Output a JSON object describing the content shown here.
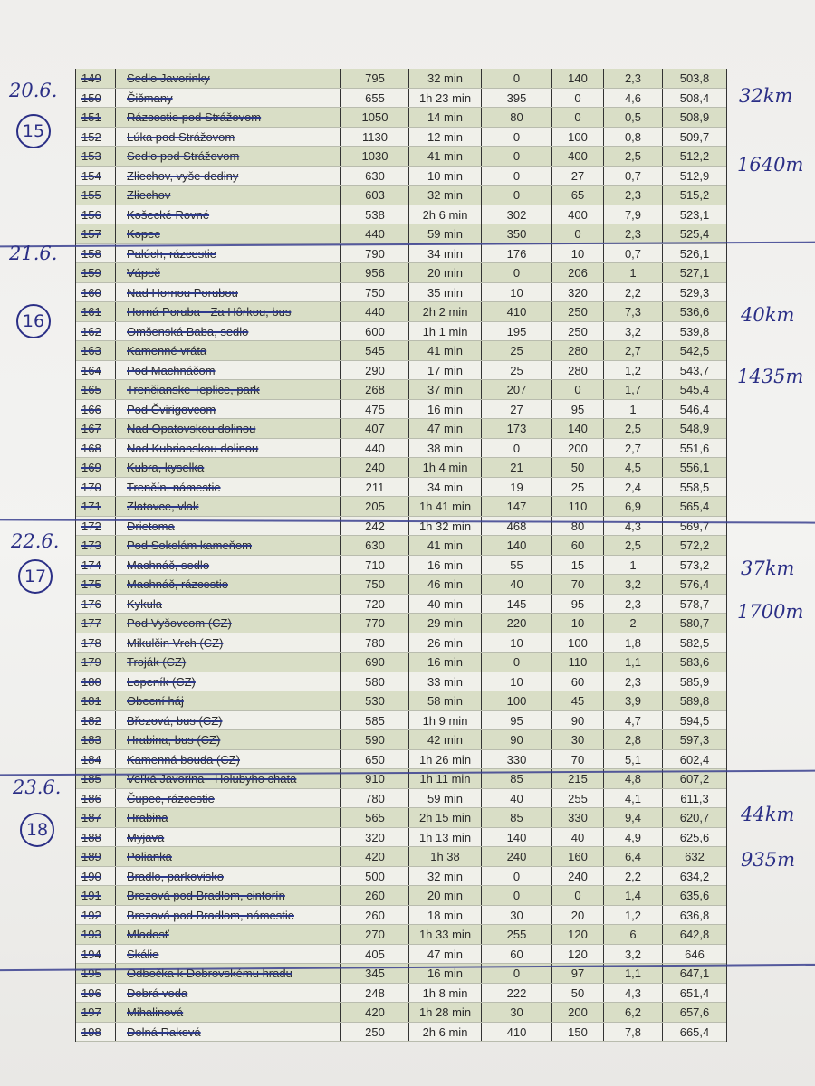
{
  "rows": [
    [
      "149",
      "Sedlo Javorinky",
      "795",
      "32 min",
      "0",
      "140",
      "2,3",
      "503,8"
    ],
    [
      "150",
      "Čičmany",
      "655",
      "1h 23 min",
      "395",
      "0",
      "4,6",
      "508,4"
    ],
    [
      "151",
      "Rázcestie pod Strážovom",
      "1050",
      "14 min",
      "80",
      "0",
      "0,5",
      "508,9"
    ],
    [
      "152",
      "Lúka pod Strážovom",
      "1130",
      "12 min",
      "0",
      "100",
      "0,8",
      "509,7"
    ],
    [
      "153",
      "Sedlo pod Strážovom",
      "1030",
      "41 min",
      "0",
      "400",
      "2,5",
      "512,2"
    ],
    [
      "154",
      "Zliechov, vyše dediny",
      "630",
      "10 min",
      "0",
      "27",
      "0,7",
      "512,9"
    ],
    [
      "155",
      "Zliechov",
      "603",
      "32 min",
      "0",
      "65",
      "2,3",
      "515,2"
    ],
    [
      "156",
      "Košecké Rovné",
      "538",
      "2h 6 min",
      "302",
      "400",
      "7,9",
      "523,1"
    ],
    [
      "157",
      "Kopec",
      "440",
      "59 min",
      "350",
      "0",
      "2,3",
      "525,4"
    ],
    [
      "158",
      "Palúch, rázcestie",
      "790",
      "34 min",
      "176",
      "10",
      "0,7",
      "526,1"
    ],
    [
      "159",
      "Vápeč",
      "956",
      "20 min",
      "0",
      "206",
      "1",
      "527,1"
    ],
    [
      "160",
      "Nad Hornou Porubou",
      "750",
      "35 min",
      "10",
      "320",
      "2,2",
      "529,3"
    ],
    [
      "161",
      "Horná Poruba - Za Hôrkou, bus",
      "440",
      "2h 2 min",
      "410",
      "250",
      "7,3",
      "536,6"
    ],
    [
      "162",
      "Omšenská Baba, sedlo",
      "600",
      "1h 1 min",
      "195",
      "250",
      "3,2",
      "539,8"
    ],
    [
      "163",
      "Kamenné vráta",
      "545",
      "41 min",
      "25",
      "280",
      "2,7",
      "542,5"
    ],
    [
      "164",
      "Pod Machnáčom",
      "290",
      "17 min",
      "25",
      "280",
      "1,2",
      "543,7"
    ],
    [
      "165",
      "Trenčianske Teplice, park",
      "268",
      "37 min",
      "207",
      "0",
      "1,7",
      "545,4"
    ],
    [
      "166",
      "Pod Čvirigovcom",
      "475",
      "16 min",
      "27",
      "95",
      "1",
      "546,4"
    ],
    [
      "167",
      "Nad Opatovskou dolinou",
      "407",
      "47 min",
      "173",
      "140",
      "2,5",
      "548,9"
    ],
    [
      "168",
      "Nad Kubrianskou dolinou",
      "440",
      "38 min",
      "0",
      "200",
      "2,7",
      "551,6"
    ],
    [
      "169",
      "Kubra, kyselka",
      "240",
      "1h 4 min",
      "21",
      "50",
      "4,5",
      "556,1"
    ],
    [
      "170",
      "Trenčín, námestie",
      "211",
      "34 min",
      "19",
      "25",
      "2,4",
      "558,5"
    ],
    [
      "171",
      "Zlatovce, vlak",
      "205",
      "1h 41 min",
      "147",
      "110",
      "6,9",
      "565,4"
    ],
    [
      "172",
      "Drietoma",
      "242",
      "1h 32 min",
      "468",
      "80",
      "4,3",
      "569,7"
    ],
    [
      "173",
      "Pod Sokolám kameňom",
      "630",
      "41 min",
      "140",
      "60",
      "2,5",
      "572,2"
    ],
    [
      "174",
      "Machnáč, sedlo",
      "710",
      "16 min",
      "55",
      "15",
      "1",
      "573,2"
    ],
    [
      "175",
      "Machnáč, rázcestie",
      "750",
      "46 min",
      "40",
      "70",
      "3,2",
      "576,4"
    ],
    [
      "176",
      "Kykula",
      "720",
      "40 min",
      "145",
      "95",
      "2,3",
      "578,7"
    ],
    [
      "177",
      "Pod Vyšovcom (CZ)",
      "770",
      "29 min",
      "220",
      "10",
      "2",
      "580,7"
    ],
    [
      "178",
      "Mikulčin Vrch (CZ)",
      "780",
      "26 min",
      "10",
      "100",
      "1,8",
      "582,5"
    ],
    [
      "179",
      "Troják (CZ)",
      "690",
      "16 min",
      "0",
      "110",
      "1,1",
      "583,6"
    ],
    [
      "180",
      "Lopeník (CZ)",
      "580",
      "33 min",
      "10",
      "60",
      "2,3",
      "585,9"
    ],
    [
      "181",
      "Obecní háj",
      "530",
      "58 min",
      "100",
      "45",
      "3,9",
      "589,8"
    ],
    [
      "182",
      "Březová, bus (CZ)",
      "585",
      "1h 9 min",
      "95",
      "90",
      "4,7",
      "594,5"
    ],
    [
      "183",
      "Hrabina, bus (CZ)",
      "590",
      "42 min",
      "90",
      "30",
      "2,8",
      "597,3"
    ],
    [
      "184",
      "Kamenná bouda (CZ)",
      "650",
      "1h 26 min",
      "330",
      "70",
      "5,1",
      "602,4"
    ],
    [
      "185",
      "Veľká Javorina - Holubyho chata",
      "910",
      "1h 11 min",
      "85",
      "215",
      "4,8",
      "607,2"
    ],
    [
      "186",
      "Čupec, rázcestie",
      "780",
      "59 min",
      "40",
      "255",
      "4,1",
      "611,3"
    ],
    [
      "187",
      "Hrabina",
      "565",
      "2h 15 min",
      "85",
      "330",
      "9,4",
      "620,7"
    ],
    [
      "188",
      "Myjava",
      "320",
      "1h 13 min",
      "140",
      "40",
      "4,9",
      "625,6"
    ],
    [
      "189",
      "Polianka",
      "420",
      "1h 38",
      "240",
      "160",
      "6,4",
      "632"
    ],
    [
      "190",
      "Bradlo, parkovisko",
      "500",
      "32 min",
      "0",
      "240",
      "2,2",
      "634,2"
    ],
    [
      "191",
      "Brezová pod Bradlom, cintorín",
      "260",
      "20 min",
      "0",
      "0",
      "1,4",
      "635,6"
    ],
    [
      "192",
      "Brezová pod Bradlom, námestie",
      "260",
      "18 min",
      "30",
      "20",
      "1,2",
      "636,8"
    ],
    [
      "193",
      "Mladosť",
      "270",
      "1h 33 min",
      "255",
      "120",
      "6",
      "642,8"
    ],
    [
      "194",
      "Skálie",
      "405",
      "47 min",
      "60",
      "120",
      "3,2",
      "646"
    ],
    [
      "195",
      "Odbočka k Dobrovskému hradu",
      "345",
      "16 min",
      "0",
      "97",
      "1,1",
      "647,1"
    ],
    [
      "196",
      "Dobrá voda",
      "248",
      "1h 8 min",
      "222",
      "50",
      "4,3",
      "651,4"
    ],
    [
      "197",
      "Mihalinová",
      "420",
      "1h 28 min",
      "30",
      "200",
      "6,2",
      "657,6"
    ],
    [
      "198",
      "Dolná Raková",
      "250",
      "2h 6 min",
      "410",
      "150",
      "7,8",
      "665,4"
    ]
  ],
  "annotations": {
    "day15": {
      "date": "20.6.",
      "stage": "15",
      "distance": "32km",
      "ascent": "1640m"
    },
    "day16": {
      "date": "21.6.",
      "stage": "16",
      "distance": "40km",
      "ascent": "1435m"
    },
    "day17": {
      "date": "22.6.",
      "stage": "17",
      "distance": "37km",
      "ascent": "1700m"
    },
    "day18": {
      "date": "23.6.",
      "stage": "18",
      "distance": "44km",
      "ascent": "935m"
    }
  },
  "colors": {
    "ink": "#2b2f86",
    "row_shade": "#d9dec6",
    "row_light": "#f0f0ea"
  }
}
